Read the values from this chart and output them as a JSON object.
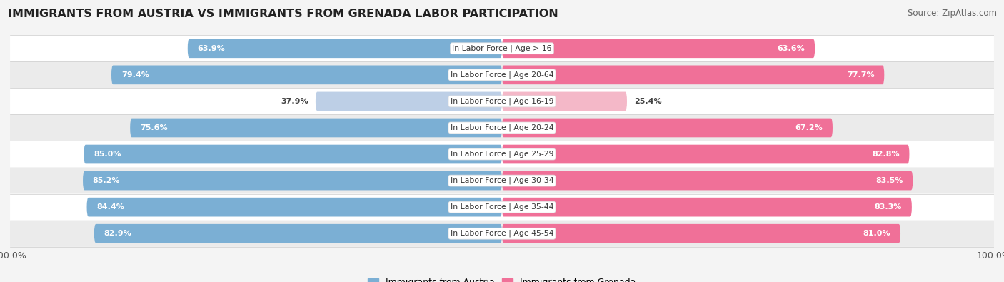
{
  "title": "IMMIGRANTS FROM AUSTRIA VS IMMIGRANTS FROM GRENADA LABOR PARTICIPATION",
  "source": "Source: ZipAtlas.com",
  "categories": [
    "In Labor Force | Age > 16",
    "In Labor Force | Age 20-64",
    "In Labor Force | Age 16-19",
    "In Labor Force | Age 20-24",
    "In Labor Force | Age 25-29",
    "In Labor Force | Age 30-34",
    "In Labor Force | Age 35-44",
    "In Labor Force | Age 45-54"
  ],
  "austria_values": [
    63.9,
    79.4,
    37.9,
    75.6,
    85.0,
    85.2,
    84.4,
    82.9
  ],
  "grenada_values": [
    63.6,
    77.7,
    25.4,
    67.2,
    82.8,
    83.5,
    83.3,
    81.0
  ],
  "austria_color": "#7BAFD4",
  "austria_light_color": "#BDCFE6",
  "grenada_color": "#F07098",
  "grenada_light_color": "#F4B8C8",
  "background_color": "#F4F4F4",
  "row_color_even": "#FFFFFF",
  "row_color_odd": "#EBEBEB",
  "row_separator_color": "#CCCCCC",
  "max_value": 100.0,
  "legend_austria": "Immigrants from Austria",
  "legend_grenada": "Immigrants from Grenada",
  "title_fontsize": 11.5,
  "source_fontsize": 8.5,
  "bar_label_fontsize": 8,
  "category_fontsize": 7.8
}
